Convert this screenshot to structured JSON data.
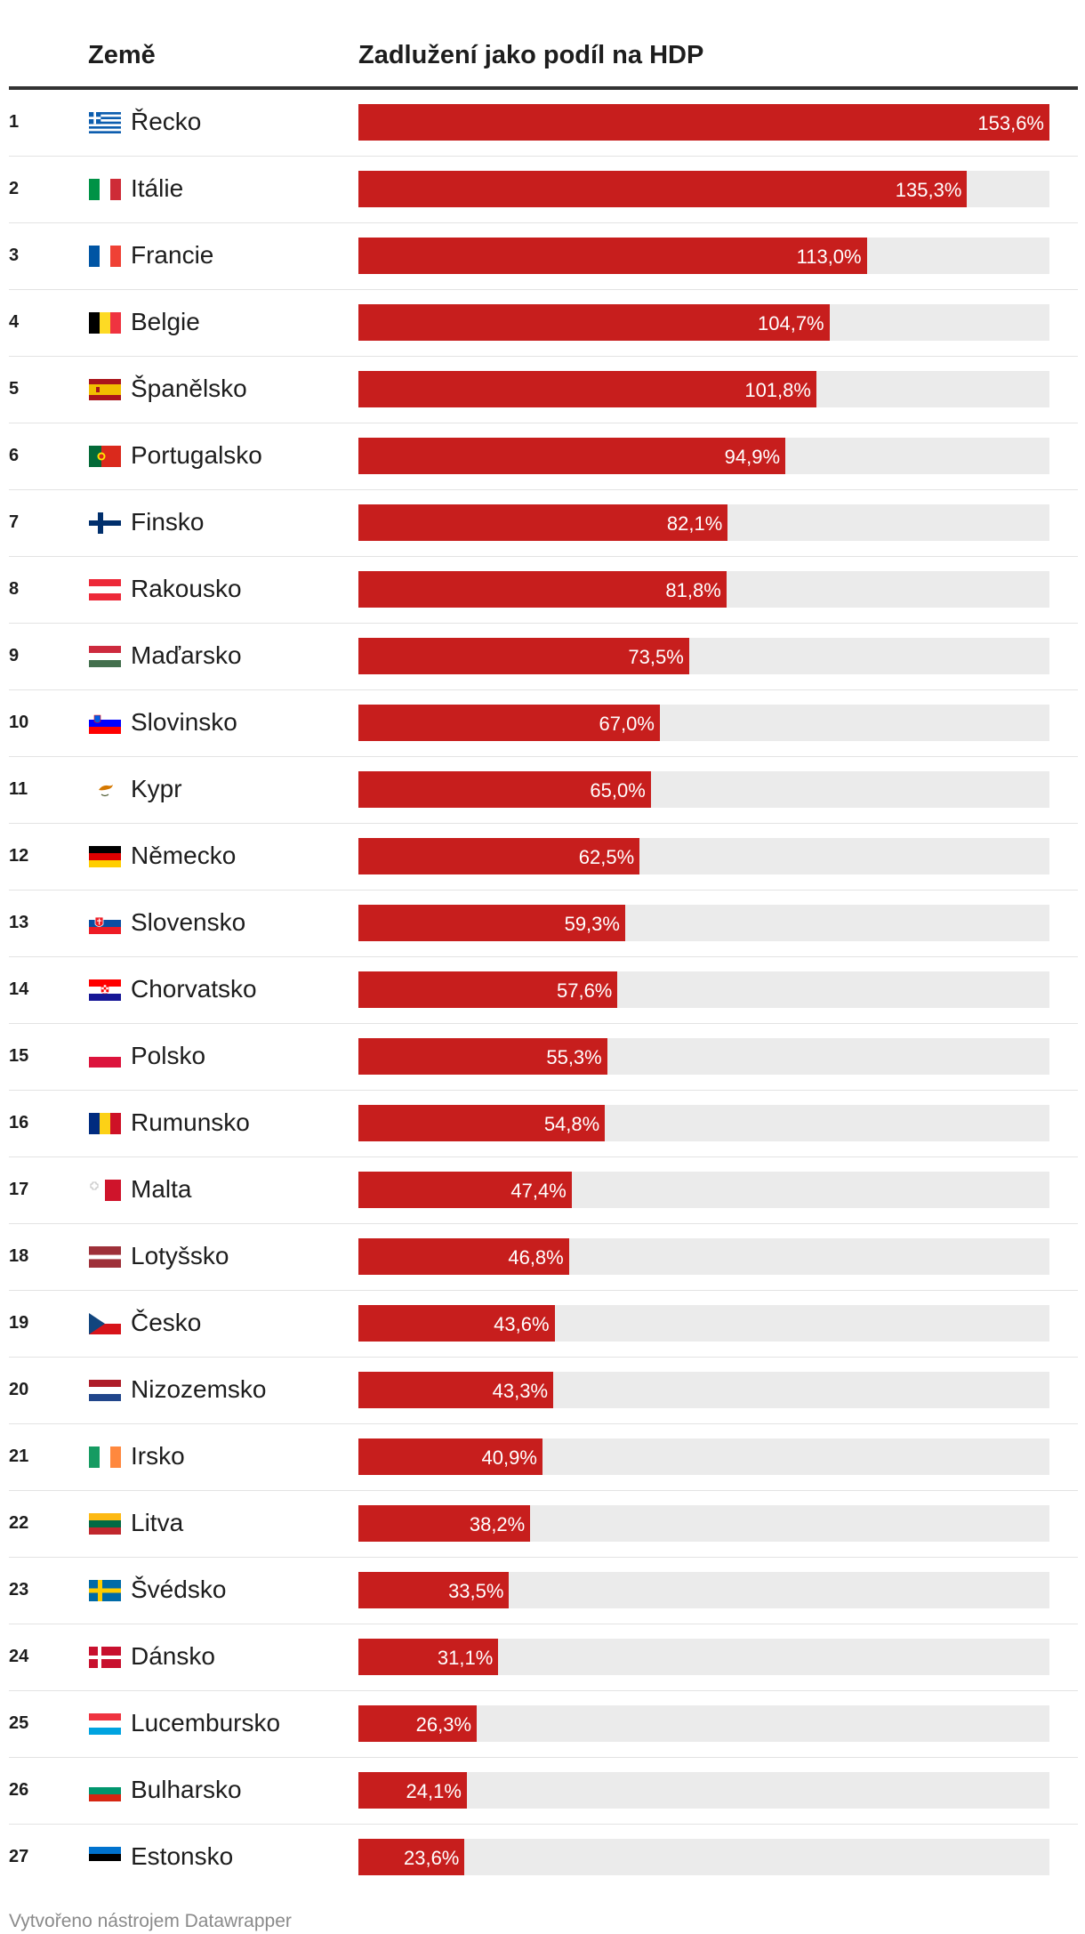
{
  "chart_data": {
    "type": "bar",
    "orientation": "horizontal",
    "xlim": [
      0,
      153.6
    ],
    "columns": {
      "country": "Země",
      "value": "Zadlužení jako podíl na HDP"
    },
    "bar_color": "#c71e1d",
    "track_color": "#ebebeb",
    "rows": [
      {
        "rank": "1",
        "country": "Řecko",
        "flag": "greece-flag-icon",
        "value": 153.6,
        "label": "153,6%"
      },
      {
        "rank": "2",
        "country": "Itálie",
        "flag": "italy-flag-icon",
        "value": 135.3,
        "label": "135,3%"
      },
      {
        "rank": "3",
        "country": "Francie",
        "flag": "france-flag-icon",
        "value": 113.0,
        "label": "113,0%"
      },
      {
        "rank": "4",
        "country": "Belgie",
        "flag": "belgium-flag-icon",
        "value": 104.7,
        "label": "104,7%"
      },
      {
        "rank": "5",
        "country": "Španělsko",
        "flag": "spain-flag-icon",
        "value": 101.8,
        "label": "101,8%"
      },
      {
        "rank": "6",
        "country": "Portugalsko",
        "flag": "portugal-flag-icon",
        "value": 94.9,
        "label": "94,9%"
      },
      {
        "rank": "7",
        "country": "Finsko",
        "flag": "finland-flag-icon",
        "value": 82.1,
        "label": "82,1%"
      },
      {
        "rank": "8",
        "country": "Rakousko",
        "flag": "austria-flag-icon",
        "value": 81.8,
        "label": "81,8%"
      },
      {
        "rank": "9",
        "country": "Maďarsko",
        "flag": "hungary-flag-icon",
        "value": 73.5,
        "label": "73,5%"
      },
      {
        "rank": "10",
        "country": "Slovinsko",
        "flag": "slovenia-flag-icon",
        "value": 67.0,
        "label": "67,0%"
      },
      {
        "rank": "11",
        "country": "Kypr",
        "flag": "cyprus-flag-icon",
        "value": 65.0,
        "label": "65,0%"
      },
      {
        "rank": "12",
        "country": "Německo",
        "flag": "germany-flag-icon",
        "value": 62.5,
        "label": "62,5%"
      },
      {
        "rank": "13",
        "country": "Slovensko",
        "flag": "slovakia-flag-icon",
        "value": 59.3,
        "label": "59,3%"
      },
      {
        "rank": "14",
        "country": "Chorvatsko",
        "flag": "croatia-flag-icon",
        "value": 57.6,
        "label": "57,6%"
      },
      {
        "rank": "15",
        "country": "Polsko",
        "flag": "poland-flag-icon",
        "value": 55.3,
        "label": "55,3%"
      },
      {
        "rank": "16",
        "country": "Rumunsko",
        "flag": "romania-flag-icon",
        "value": 54.8,
        "label": "54,8%"
      },
      {
        "rank": "17",
        "country": "Malta",
        "flag": "malta-flag-icon",
        "value": 47.4,
        "label": "47,4%"
      },
      {
        "rank": "18",
        "country": "Lotyšsko",
        "flag": "latvia-flag-icon",
        "value": 46.8,
        "label": "46,8%"
      },
      {
        "rank": "19",
        "country": "Česko",
        "flag": "czechia-flag-icon",
        "value": 43.6,
        "label": "43,6%"
      },
      {
        "rank": "20",
        "country": "Nizozemsko",
        "flag": "netherlands-flag-icon",
        "value": 43.3,
        "label": "43,3%"
      },
      {
        "rank": "21",
        "country": "Irsko",
        "flag": "ireland-flag-icon",
        "value": 40.9,
        "label": "40,9%"
      },
      {
        "rank": "22",
        "country": "Litva",
        "flag": "lithuania-flag-icon",
        "value": 38.2,
        "label": "38,2%"
      },
      {
        "rank": "23",
        "country": "Švédsko",
        "flag": "sweden-flag-icon",
        "value": 33.5,
        "label": "33,5%"
      },
      {
        "rank": "24",
        "country": "Dánsko",
        "flag": "denmark-flag-icon",
        "value": 31.1,
        "label": "31,1%"
      },
      {
        "rank": "25",
        "country": "Lucembursko",
        "flag": "luxembourg-flag-icon",
        "value": 26.3,
        "label": "26,3%"
      },
      {
        "rank": "26",
        "country": "Bulharsko",
        "flag": "bulgaria-flag-icon",
        "value": 24.1,
        "label": "24,1%"
      },
      {
        "rank": "27",
        "country": "Estonsko",
        "flag": "estonia-flag-icon",
        "value": 23.6,
        "label": "23,6%"
      }
    ]
  },
  "footer": {
    "credit": "Vytvořeno nástrojem Datawrapper"
  }
}
